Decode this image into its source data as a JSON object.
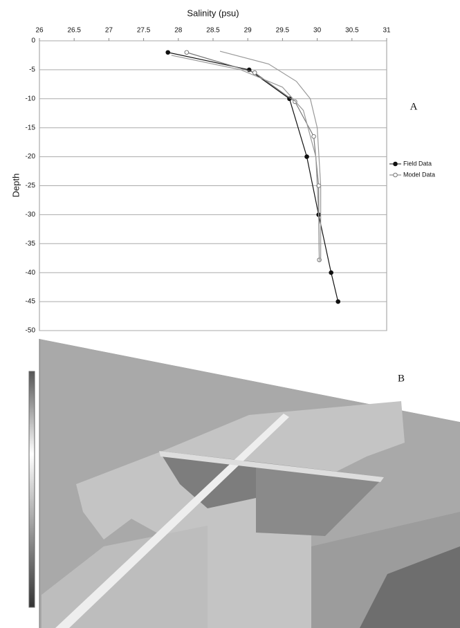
{
  "chart_data": {
    "type": "line",
    "title": "Salinity (psu)",
    "y_label": "Depth",
    "annotations": [
      "A",
      "B"
    ],
    "xlim": [
      26,
      31
    ],
    "xticks": [
      26,
      26.5,
      27,
      27.5,
      28,
      28.5,
      29,
      29.5,
      30,
      30.5,
      31
    ],
    "ylim": [
      -50,
      0
    ],
    "yticks": [
      0,
      -5,
      -10,
      -15,
      -20,
      -25,
      -30,
      -35,
      -40,
      -45,
      -50
    ],
    "grid": true,
    "legend": "right",
    "series": [
      {
        "name": "Field Data",
        "color": "#111111",
        "marker": "filled",
        "x": [
          27.85,
          29.02,
          29.6,
          29.85,
          30.02,
          30.2,
          30.3
        ],
        "y": [
          -2,
          -5,
          -10,
          -20,
          -30,
          -40,
          -45
        ]
      },
      {
        "name": "Model Data",
        "color": "#777777",
        "marker": "open",
        "x": [
          28.12,
          29.1,
          29.68,
          29.95,
          30.02,
          30.03
        ],
        "y": [
          -2,
          -5.5,
          -10.5,
          -16.5,
          -25,
          -37.8
        ]
      },
      {
        "color": "#999999",
        "x": [
          28.6,
          29.3,
          29.7,
          29.9,
          30.0,
          30.05,
          30.05
        ],
        "y": [
          -1.8,
          -4,
          -7,
          -10,
          -15,
          -25,
          -38
        ]
      },
      {
        "color": "#999999",
        "x": [
          27.9,
          28.9,
          29.5,
          29.8,
          29.98,
          30.02,
          30.03
        ],
        "y": [
          -2.5,
          -5,
          -8,
          -12,
          -20,
          -30,
          -38
        ]
      }
    ]
  }
}
